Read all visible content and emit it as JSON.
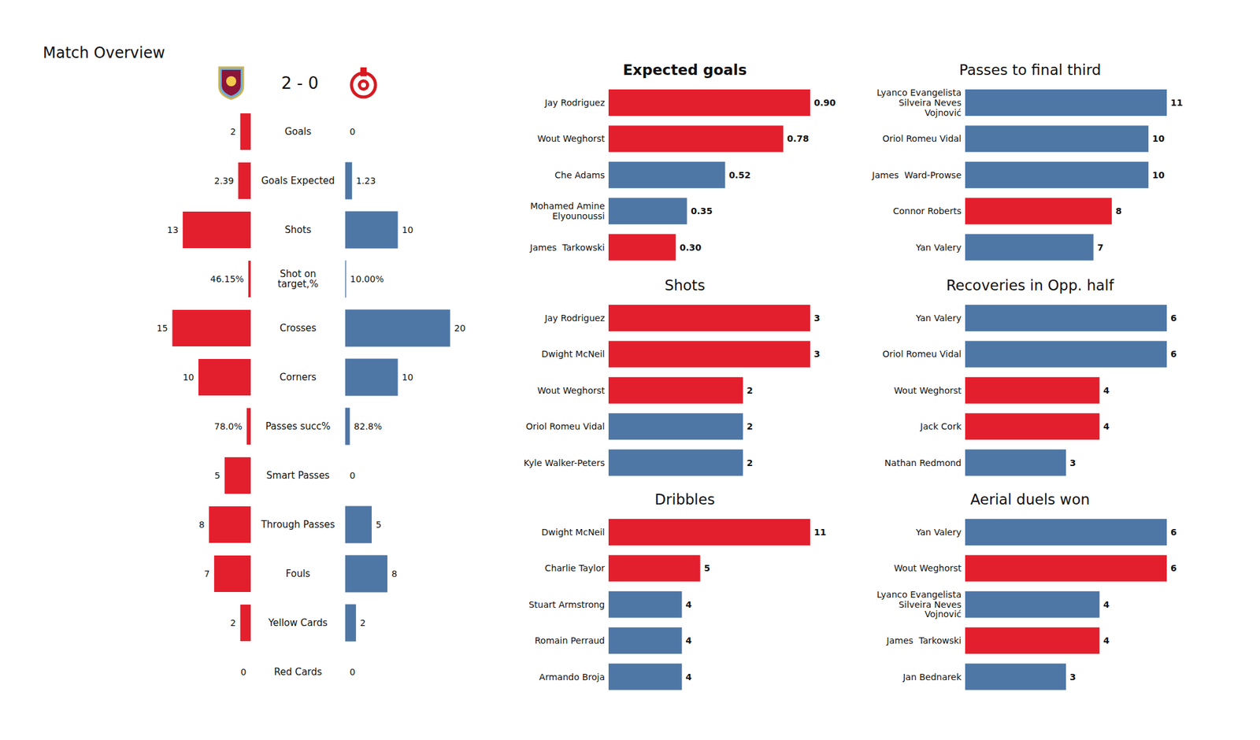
{
  "chart_data": [
    {
      "type": "butterfly",
      "title": "Match Overview",
      "subtitle": "2 - 0",
      "orientation": "horizontal",
      "data_labels": true,
      "categories": [
        "Goals",
        "Goals Expected",
        "Shots",
        "Shot on target,%",
        "Crosses",
        "Corners",
        "Passes succ%",
        "Smart Passes",
        "Through Passes",
        "Fouls",
        "Yellow Cards",
        "Red Cards"
      ],
      "xlim": [
        0,
        20
      ],
      "series": [
        {
          "color": "#e41f2d",
          "values": [
            2,
            2.39,
            13,
            0.4615,
            15,
            10,
            0.78,
            5,
            8,
            7,
            2,
            0
          ],
          "value_labels": [
            "2",
            "2.39",
            "13",
            "46.15%",
            "15",
            "10",
            "78.0%",
            "5",
            "8",
            "7",
            "2",
            "0"
          ]
        },
        {
          "color": "#4e77a6",
          "values": [
            0,
            1.23,
            10,
            0.1,
            20,
            10,
            0.828,
            0,
            5,
            8,
            2,
            0
          ],
          "value_labels": [
            "0",
            "1.23",
            "10",
            "10.00%",
            "20",
            "10",
            "82.8%",
            "0",
            "5",
            "8",
            "2",
            "0"
          ]
        }
      ]
    },
    {
      "type": "bar",
      "title": "Expected goals",
      "orientation": "horizontal",
      "data_labels": true,
      "tick_labels": "y",
      "categories": [
        "Jay Rodriguez",
        "Wout Weghorst",
        "Che Adams",
        "Mohamed Amine Elyounoussi",
        "James  Tarkowski"
      ],
      "values": [
        0.9,
        0.78,
        0.52,
        0.35,
        0.3
      ],
      "value_labels": [
        "0.90",
        "0.78",
        "0.52",
        "0.35",
        "0.30"
      ],
      "colors": [
        "#e41f2d",
        "#e41f2d",
        "#4e77a6",
        "#4e77a6",
        "#e41f2d"
      ],
      "xlim": [
        0,
        0.9
      ]
    },
    {
      "type": "bar",
      "title": "Shots",
      "orientation": "horizontal",
      "data_labels": true,
      "tick_labels": "y",
      "categories": [
        "Jay Rodriguez",
        "Dwight McNeil",
        "Wout Weghorst",
        "Oriol Romeu Vidal",
        "Kyle Walker-Peters"
      ],
      "values": [
        3,
        3,
        2,
        2,
        2
      ],
      "colors": [
        "#e41f2d",
        "#e41f2d",
        "#e41f2d",
        "#4e77a6",
        "#4e77a6"
      ],
      "xlim": [
        0,
        3
      ]
    },
    {
      "type": "bar",
      "title": "Dribbles",
      "orientation": "horizontal",
      "data_labels": true,
      "tick_labels": "y",
      "categories": [
        "Dwight McNeil",
        "Charlie Taylor",
        "Stuart Armstrong",
        "Romain Perraud",
        "Armando Broja"
      ],
      "values": [
        11,
        5,
        4,
        4,
        4
      ],
      "colors": [
        "#e41f2d",
        "#e41f2d",
        "#4e77a6",
        "#4e77a6",
        "#4e77a6"
      ],
      "xlim": [
        0,
        11
      ]
    },
    {
      "type": "bar",
      "title": "Passes to final third",
      "orientation": "horizontal",
      "data_labels": true,
      "tick_labels": "y",
      "categories": [
        "Lyanco Evangelista Silveira Neves Vojnović",
        "Oriol Romeu Vidal",
        "James  Ward-Prowse",
        "Connor Roberts",
        "Yan Valery"
      ],
      "values": [
        11,
        10,
        10,
        8,
        7
      ],
      "colors": [
        "#4e77a6",
        "#4e77a6",
        "#4e77a6",
        "#e41f2d",
        "#4e77a6"
      ],
      "xlim": [
        0,
        11
      ]
    },
    {
      "type": "bar",
      "title": "Recoveries in Opp. half",
      "orientation": "horizontal",
      "data_labels": true,
      "tick_labels": "y",
      "categories": [
        "Yan Valery",
        "Oriol Romeu Vidal",
        "Wout Weghorst",
        "Jack Cork",
        "Nathan Redmond"
      ],
      "values": [
        6,
        6,
        4,
        4,
        3
      ],
      "colors": [
        "#4e77a6",
        "#4e77a6",
        "#e41f2d",
        "#e41f2d",
        "#4e77a6"
      ],
      "xlim": [
        0,
        6
      ]
    },
    {
      "type": "bar",
      "title": "Aerial duels won",
      "orientation": "horizontal",
      "data_labels": true,
      "tick_labels": "y",
      "categories": [
        "Yan Valery",
        "Wout Weghorst",
        "Lyanco Evangelista Silveira Neves Vojnović",
        "James  Tarkowski",
        "Jan Bednarek"
      ],
      "values": [
        6,
        6,
        4,
        4,
        3
      ],
      "colors": [
        "#4e77a6",
        "#e41f2d",
        "#4e77a6",
        "#e41f2d",
        "#4e77a6"
      ],
      "xlim": [
        0,
        6
      ]
    }
  ]
}
